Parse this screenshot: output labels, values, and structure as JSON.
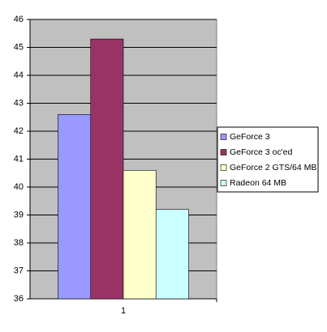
{
  "chart_data": {
    "type": "bar",
    "categories": [
      "1"
    ],
    "series": [
      {
        "name": "GeForce 3",
        "color": "#9999ff",
        "values": [
          42.6
        ]
      },
      {
        "name": "GeForce 3 oc'ed",
        "color": "#993366",
        "values": [
          45.3
        ]
      },
      {
        "name": "GeForce 2 GTS/64 MB",
        "color": "#ffffcc",
        "values": [
          40.6
        ]
      },
      {
        "name": "Radeon 64 MB",
        "color": "#ccffff",
        "values": [
          39.2
        ]
      }
    ],
    "ylim": [
      36,
      46
    ],
    "yticks": [
      36,
      37,
      38,
      39,
      40,
      41,
      42,
      43,
      44,
      45,
      46
    ],
    "grid": true,
    "plot_color": "#c0c0c0",
    "legend": "right"
  }
}
